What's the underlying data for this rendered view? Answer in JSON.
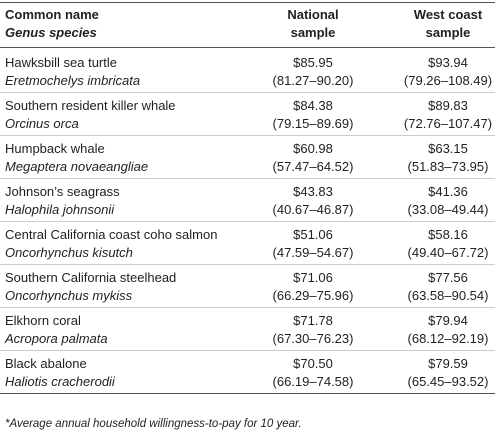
{
  "table": {
    "header": {
      "common_name": "Common name",
      "genus_species": "Genus species",
      "national": [
        "National",
        "sample"
      ],
      "west": [
        "West coast",
        "sample"
      ]
    },
    "rows": [
      {
        "common": "Hawksbill sea turtle",
        "genus": "Eretmochelys imbricata",
        "national": "$85.95",
        "national_ci": "(81.27–90.20)",
        "west": "$93.94",
        "west_ci": "(79.26–108.49)"
      },
      {
        "common": "Southern resident killer whale",
        "genus": "Orcinus orca",
        "national": "$84.38",
        "national_ci": "(79.15–89.69)",
        "west": "$89.83",
        "west_ci": "(72.76–107.47)"
      },
      {
        "common": "Humpback whale",
        "genus": "Megaptera novaeangliae",
        "national": "$60.98",
        "national_ci": "(57.47–64.52)",
        "west": "$63.15",
        "west_ci": "(51.83–73.95)"
      },
      {
        "common": "Johnson’s seagrass",
        "genus": "Halophila johnsonii",
        "national": "$43.83",
        "national_ci": "(40.67–46.87)",
        "west": "$41.36",
        "west_ci": "(33.08–49.44)"
      },
      {
        "common": "Central California coast coho salmon",
        "genus": "Oncorhynchus kisutch",
        "national": "$51.06",
        "national_ci": "(47.59–54.67)",
        "west": "$58.16",
        "west_ci": "(49.40–67.72)"
      },
      {
        "common": "Southern California steelhead",
        "genus": "Oncorhynchus mykiss",
        "national": "$71.06",
        "national_ci": "(66.29–75.96)",
        "west": "$77.56",
        "west_ci": "(63.58–90.54)"
      },
      {
        "common": "Elkhorn coral",
        "genus": "Acropora palmata",
        "national": "$71.78",
        "national_ci": "(67.30–76.23)",
        "west": "$79.94",
        "west_ci": "(68.12–92.19)"
      },
      {
        "common": "Black abalone",
        "genus": "Haliotis cracherodii",
        "national": "$70.50",
        "national_ci": "(66.19–74.58)",
        "west": "$79.59",
        "west_ci": "(65.45–93.52)"
      }
    ],
    "footnote": "*Average annual household willingness-to-pay for 10 year."
  }
}
